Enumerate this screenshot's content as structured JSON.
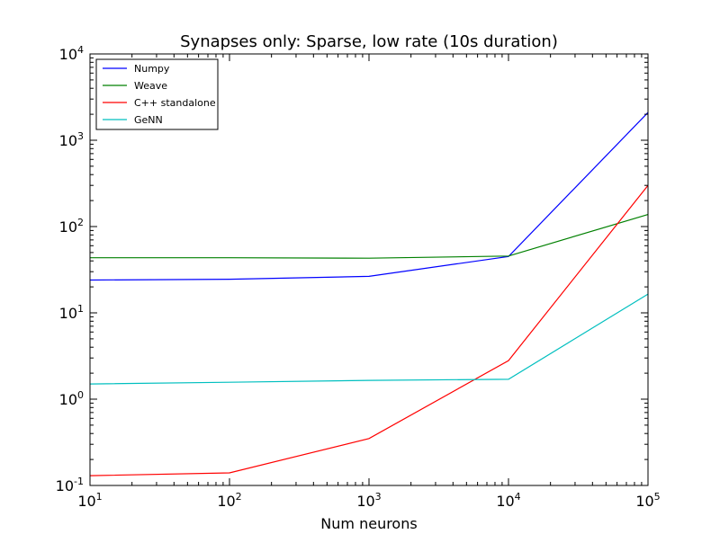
{
  "chart_data": {
    "type": "line",
    "title": "Synapses only: Sparse, low rate (10s duration)",
    "xlabel": "Num neurons",
    "ylabel": "",
    "x_scale": "log",
    "y_scale": "log",
    "xlim": [
      10,
      100000
    ],
    "ylim": [
      0.1,
      10000
    ],
    "x_ticks": [
      {
        "base": "10",
        "exp": "1",
        "value": 10
      },
      {
        "base": "10",
        "exp": "2",
        "value": 100
      },
      {
        "base": "10",
        "exp": "3",
        "value": 1000
      },
      {
        "base": "10",
        "exp": "4",
        "value": 10000
      },
      {
        "base": "10",
        "exp": "5",
        "value": 100000
      }
    ],
    "y_ticks": [
      {
        "base": "10",
        "exp": "-1",
        "value": 0.1
      },
      {
        "base": "10",
        "exp": "0",
        "value": 1
      },
      {
        "base": "10",
        "exp": "1",
        "value": 10
      },
      {
        "base": "10",
        "exp": "2",
        "value": 100
      },
      {
        "base": "10",
        "exp": "3",
        "value": 1000
      },
      {
        "base": "10",
        "exp": "4",
        "value": 10000
      }
    ],
    "legend_position": "top-left",
    "grid": false,
    "x": [
      10,
      100,
      1000,
      10000,
      100000
    ],
    "series": [
      {
        "name": "Numpy",
        "color": "#0000ff",
        "values": [
          24,
          24.5,
          26.5,
          45,
          2100
        ]
      },
      {
        "name": "Weave",
        "color": "#008000",
        "values": [
          43.5,
          43.5,
          43,
          45.5,
          138
        ]
      },
      {
        "name": "C++ standalone",
        "color": "#ff0000",
        "values": [
          0.13,
          0.14,
          0.35,
          2.8,
          300
        ]
      },
      {
        "name": "GeNN",
        "color": "#00bfbf",
        "values": [
          1.5,
          1.57,
          1.65,
          1.7,
          16.5
        ]
      }
    ]
  }
}
